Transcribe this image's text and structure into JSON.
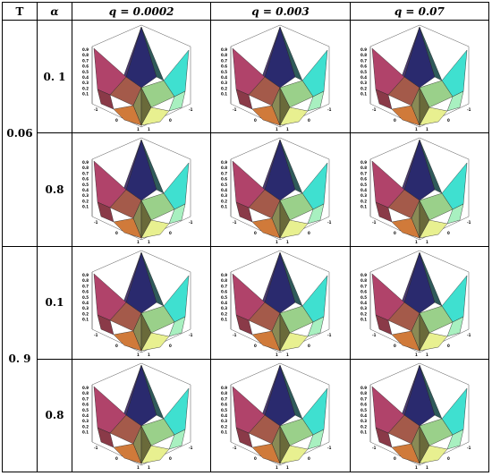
{
  "header": {
    "t_label": "T",
    "alpha_label": "α",
    "q_labels": [
      "q = 0.0002",
      "q = 0.003",
      "q = 0.07"
    ]
  },
  "rows": [
    {
      "t": "0.06",
      "alphas": [
        "0. 1",
        "0.8"
      ]
    },
    {
      "t": "0. 9",
      "alphas": [
        "0.1",
        "0.8"
      ]
    }
  ],
  "plot": {
    "z_ticks": [
      "0.9",
      "0.8",
      "0.7",
      "0.6",
      "0.5",
      "0.4",
      "0.3",
      "0.2",
      "0.1"
    ],
    "x_ticks": [
      "-1",
      "0",
      "1"
    ],
    "y_ticks": [
      "-1",
      "0",
      "1"
    ],
    "colors": {
      "top": "#2a2a6e",
      "left": "#b0436a",
      "right": "#3fe0d0",
      "front": "#8a8a55",
      "bottom_left": "#d07a3a",
      "bottom_right": "#e8f090"
    }
  }
}
